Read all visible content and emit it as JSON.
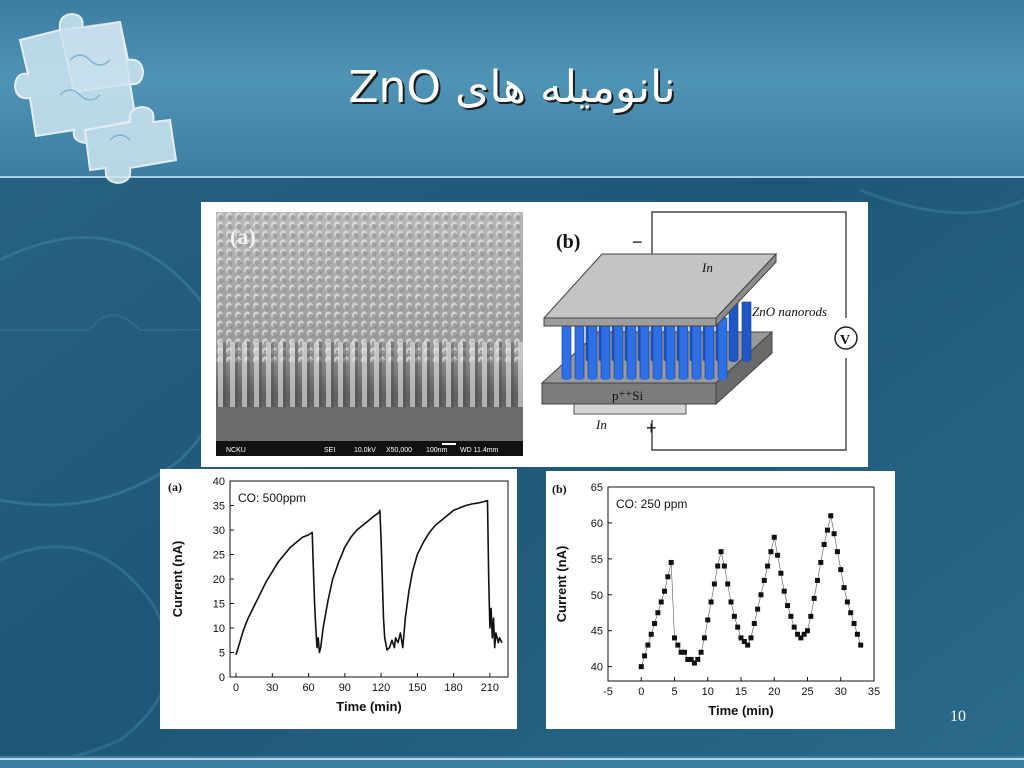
{
  "slide": {
    "title": "نانومیله های ZnO",
    "page_number": "10"
  },
  "sem_image": {
    "panel_label": "(a)",
    "footer": [
      "NCKU",
      "SEI",
      "10.0kV",
      "X50,000",
      "100nm",
      "WD 11.4mm"
    ]
  },
  "device_diagram": {
    "panel_label": "(b)",
    "top_electrode": "In",
    "bottom_electrode": "In",
    "nanorods_label": "ZnO nanorods",
    "substrate_label": "p⁺⁺Si",
    "minus_terminal": "−",
    "plus_terminal": "+",
    "meter_label": "V",
    "colors": {
      "nanorods": "#2f6fe6",
      "plate": "#bdbdbd",
      "substrate": "#8a8a8a"
    }
  },
  "chart_data": [
    {
      "type": "line",
      "panel_label": "(a)",
      "annotation": "CO: 500ppm",
      "xlabel": "Time (min)",
      "ylabel": "Current (nA)",
      "xlim": [
        -5,
        225
      ],
      "ylim": [
        0,
        40
      ],
      "xticks": [
        0,
        30,
        60,
        90,
        120,
        150,
        180,
        210
      ],
      "yticks": [
        0,
        5,
        10,
        15,
        20,
        25,
        30,
        35,
        40
      ],
      "series": [
        {
          "x": [
            0,
            3,
            6,
            10,
            15,
            20,
            25,
            30,
            35,
            40,
            45,
            50,
            55,
            60,
            63,
            64,
            65,
            66,
            67,
            68,
            69,
            70,
            72,
            76,
            80,
            85,
            90,
            95,
            100,
            105,
            110,
            115,
            118,
            119,
            120,
            121,
            122,
            123,
            125,
            127,
            129,
            131,
            132,
            134,
            136,
            138,
            140,
            143,
            146,
            150,
            155,
            160,
            165,
            170,
            175,
            180,
            185,
            190,
            195,
            200,
            205,
            208,
            209,
            210,
            211,
            212,
            213,
            214,
            215,
            216,
            217,
            218,
            220
          ],
          "y": [
            4.5,
            7,
            9.5,
            12,
            14.5,
            17,
            19.5,
            21.5,
            23.5,
            25,
            26.5,
            27.5,
            28.5,
            29,
            29.5,
            22,
            15,
            10,
            6,
            8,
            5,
            6,
            10,
            15.5,
            20,
            23.5,
            26.5,
            28.5,
            30,
            31,
            32,
            33,
            33.5,
            34,
            28,
            20,
            12,
            8,
            5.5,
            6,
            7.5,
            6,
            8,
            7,
            9,
            6,
            12,
            17.5,
            21.5,
            25,
            27.5,
            29.5,
            31,
            32,
            33,
            34,
            34.5,
            35,
            35.3,
            35.5,
            35.8,
            36,
            20,
            10,
            14,
            8,
            12,
            6,
            9,
            8,
            7,
            8,
            7
          ]
        }
      ]
    },
    {
      "type": "scatter",
      "panel_label": "(b)",
      "annotation": "CO: 250 ppm",
      "xlabel": "Time (min)",
      "ylabel": "Current (nA)",
      "xlim": [
        -5,
        35
      ],
      "ylim": [
        38,
        65
      ],
      "xticks": [
        -5,
        0,
        5,
        10,
        15,
        20,
        25,
        30,
        35
      ],
      "yticks": [
        40,
        45,
        50,
        55,
        60,
        65
      ],
      "series": [
        {
          "x": [
            0,
            0.5,
            1,
            1.5,
            2,
            2.5,
            3,
            3.5,
            4,
            4.5,
            5,
            5.5,
            6,
            6.5,
            7,
            7.5,
            8,
            8.5,
            9,
            9.5,
            10,
            10.5,
            11,
            11.5,
            12,
            12.5,
            13,
            13.5,
            14,
            14.5,
            15,
            15.5,
            16,
            16.5,
            17,
            17.5,
            18,
            18.5,
            19,
            19.5,
            20,
            20.5,
            21,
            21.5,
            22,
            22.5,
            23,
            23.5,
            24,
            24.5,
            25,
            25.5,
            26,
            26.5,
            27,
            27.5,
            28,
            28.5,
            29,
            29.5,
            30,
            30.5,
            31,
            31.5,
            32,
            32.5,
            33
          ],
          "y": [
            40,
            41.5,
            43,
            44.5,
            46,
            47.5,
            49,
            50.5,
            52.5,
            54.5,
            44,
            43,
            42,
            42,
            41,
            41,
            40.5,
            41,
            42,
            44,
            46.5,
            49,
            51.5,
            54,
            56,
            54,
            51.5,
            49,
            47,
            45.5,
            44,
            43.5,
            43,
            44,
            46,
            48,
            50,
            52,
            54,
            56,
            58,
            55.5,
            53,
            50.5,
            48.5,
            47,
            45.5,
            44.5,
            44,
            44.5,
            45,
            47,
            49.5,
            52,
            54.5,
            57,
            59,
            61,
            58.5,
            56,
            53.5,
            51,
            49,
            47.5,
            46,
            44.5,
            43
          ]
        }
      ]
    }
  ]
}
